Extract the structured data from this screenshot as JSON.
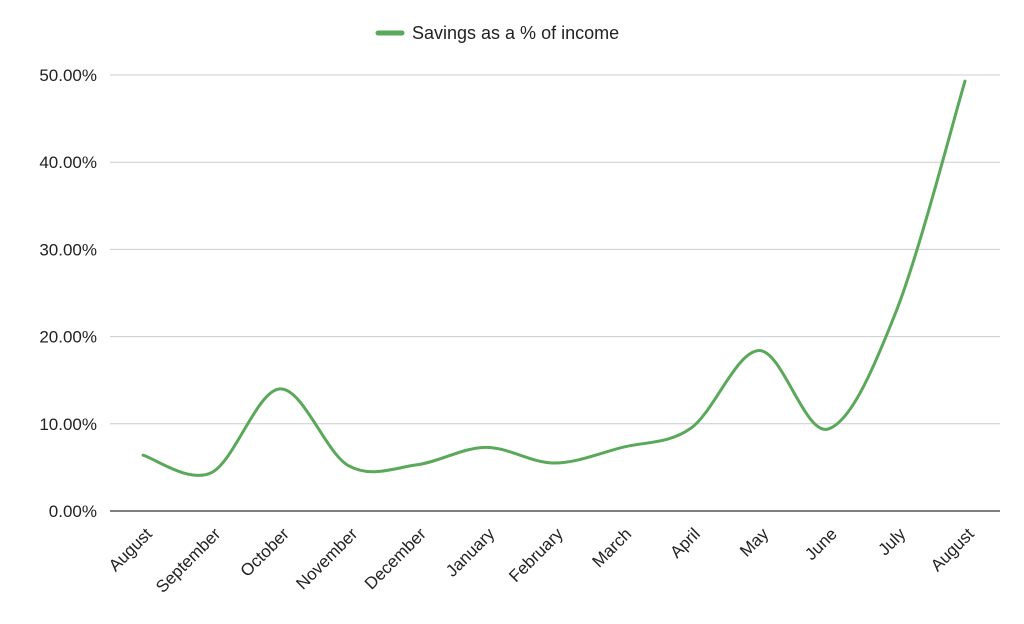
{
  "chart_data": {
    "type": "line",
    "title": "",
    "xlabel": "",
    "ylabel": "",
    "categories": [
      "August",
      "September",
      "October",
      "November",
      "December",
      "January",
      "February",
      "March",
      "April",
      "May",
      "June",
      "July",
      "August"
    ],
    "series": [
      {
        "name": "Savings as a % of income",
        "color": "#5aa85a",
        "values": [
          6.4,
          4.4,
          14.0,
          5.2,
          5.3,
          7.3,
          5.5,
          7.3,
          9.5,
          18.4,
          9.4,
          23.0,
          49.3
        ]
      }
    ],
    "yticks": [
      "0.00%",
      "10.00%",
      "20.00%",
      "30.00%",
      "40.00%",
      "50.00%"
    ],
    "ylim": [
      0,
      50
    ],
    "grid": true,
    "legend_position": "top"
  }
}
